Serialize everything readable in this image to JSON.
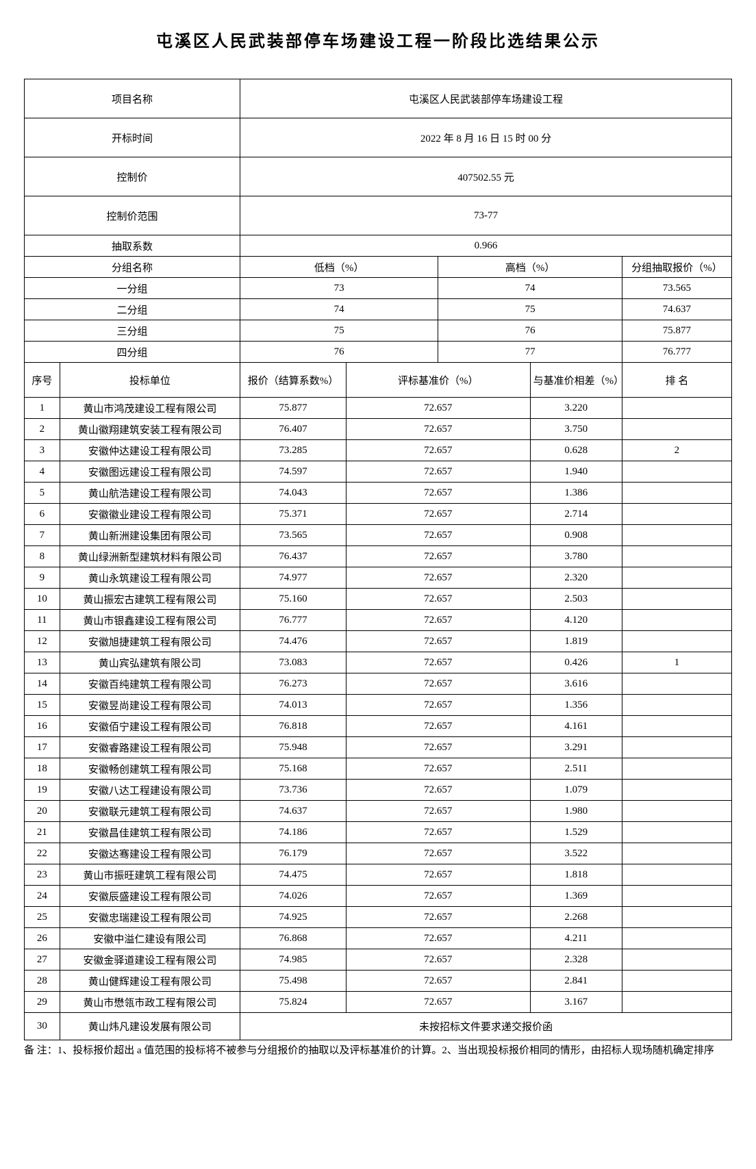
{
  "title": "屯溪区人民武装部停车场建设工程一阶段比选结果公示",
  "info": {
    "project_name_label": "项目名称",
    "project_name_value": "屯溪区人民武装部停车场建设工程",
    "open_time_label": "开标时间",
    "open_time_value": "2022 年 8 月 16 日 15 时 00 分",
    "control_price_label": "控制价",
    "control_price_value": "407502.55 元",
    "control_range_label": "控制价范围",
    "control_range_value": "73-77",
    "coef_label": "抽取系数",
    "coef_value": "0.966"
  },
  "group_header": {
    "name": "分组名称",
    "low": "低档（%）",
    "high": "高档（%）",
    "drawn": "分组抽取报价（%）"
  },
  "groups": [
    {
      "name": "一分组",
      "low": "73",
      "high": "74",
      "drawn": "73.565"
    },
    {
      "name": "二分组",
      "low": "74",
      "high": "75",
      "drawn": "74.637"
    },
    {
      "name": "三分组",
      "low": "75",
      "high": "76",
      "drawn": "75.877"
    },
    {
      "name": "四分组",
      "low": "76",
      "high": "77",
      "drawn": "76.777"
    }
  ],
  "bid_header": {
    "seq": "序号",
    "unit": "投标单位",
    "quote": "报价（结算系数%）",
    "base": "评标基准价（%）",
    "diff": "与基准价相差（%）",
    "rank": "排 名"
  },
  "bids": [
    {
      "seq": "1",
      "unit": "黄山市鸿茂建设工程有限公司",
      "quote": "75.877",
      "base": "72.657",
      "diff": "3.220",
      "rank": ""
    },
    {
      "seq": "2",
      "unit": "黄山徽翔建筑安装工程有限公司",
      "quote": "76.407",
      "base": "72.657",
      "diff": "3.750",
      "rank": ""
    },
    {
      "seq": "3",
      "unit": "安徽仲达建设工程有限公司",
      "quote": "73.285",
      "base": "72.657",
      "diff": "0.628",
      "rank": "2"
    },
    {
      "seq": "4",
      "unit": "安徽图远建设工程有限公司",
      "quote": "74.597",
      "base": "72.657",
      "diff": "1.940",
      "rank": ""
    },
    {
      "seq": "5",
      "unit": "黄山航浩建设工程有限公司",
      "quote": "74.043",
      "base": "72.657",
      "diff": "1.386",
      "rank": ""
    },
    {
      "seq": "6",
      "unit": "安徽徽业建设工程有限公司",
      "quote": "75.371",
      "base": "72.657",
      "diff": "2.714",
      "rank": ""
    },
    {
      "seq": "7",
      "unit": "黄山新洲建设集团有限公司",
      "quote": "73.565",
      "base": "72.657",
      "diff": "0.908",
      "rank": ""
    },
    {
      "seq": "8",
      "unit": "黄山绿洲新型建筑材料有限公司",
      "quote": "76.437",
      "base": "72.657",
      "diff": "3.780",
      "rank": ""
    },
    {
      "seq": "9",
      "unit": "黄山永筑建设工程有限公司",
      "quote": "74.977",
      "base": "72.657",
      "diff": "2.320",
      "rank": ""
    },
    {
      "seq": "10",
      "unit": "黄山振宏古建筑工程有限公司",
      "quote": "75.160",
      "base": "72.657",
      "diff": "2.503",
      "rank": ""
    },
    {
      "seq": "11",
      "unit": "黄山市银鑫建设工程有限公司",
      "quote": "76.777",
      "base": "72.657",
      "diff": "4.120",
      "rank": ""
    },
    {
      "seq": "12",
      "unit": "安徽旭捷建筑工程有限公司",
      "quote": "74.476",
      "base": "72.657",
      "diff": "1.819",
      "rank": ""
    },
    {
      "seq": "13",
      "unit": "黄山宾弘建筑有限公司",
      "quote": "73.083",
      "base": "72.657",
      "diff": "0.426",
      "rank": "1"
    },
    {
      "seq": "14",
      "unit": "安徽百纯建筑工程有限公司",
      "quote": "76.273",
      "base": "72.657",
      "diff": "3.616",
      "rank": ""
    },
    {
      "seq": "15",
      "unit": "安徽昱尚建设工程有限公司",
      "quote": "74.013",
      "base": "72.657",
      "diff": "1.356",
      "rank": ""
    },
    {
      "seq": "16",
      "unit": "安徽佰宁建设工程有限公司",
      "quote": "76.818",
      "base": "72.657",
      "diff": "4.161",
      "rank": ""
    },
    {
      "seq": "17",
      "unit": "安徽睿路建设工程有限公司",
      "quote": "75.948",
      "base": "72.657",
      "diff": "3.291",
      "rank": ""
    },
    {
      "seq": "18",
      "unit": "安徽畅创建筑工程有限公司",
      "quote": "75.168",
      "base": "72.657",
      "diff": "2.511",
      "rank": ""
    },
    {
      "seq": "19",
      "unit": "安徽八达工程建设有限公司",
      "quote": "73.736",
      "base": "72.657",
      "diff": "1.079",
      "rank": ""
    },
    {
      "seq": "20",
      "unit": "安徽联元建筑工程有限公司",
      "quote": "74.637",
      "base": "72.657",
      "diff": "1.980",
      "rank": ""
    },
    {
      "seq": "21",
      "unit": "安徽昌佳建筑工程有限公司",
      "quote": "74.186",
      "base": "72.657",
      "diff": "1.529",
      "rank": ""
    },
    {
      "seq": "22",
      "unit": "安徽达骞建设工程有限公司",
      "quote": "76.179",
      "base": "72.657",
      "diff": "3.522",
      "rank": ""
    },
    {
      "seq": "23",
      "unit": "黄山市振旺建筑工程有限公司",
      "quote": "74.475",
      "base": "72.657",
      "diff": "1.818",
      "rank": ""
    },
    {
      "seq": "24",
      "unit": "安徽辰盛建设工程有限公司",
      "quote": "74.026",
      "base": "72.657",
      "diff": "1.369",
      "rank": ""
    },
    {
      "seq": "25",
      "unit": "安徽忠瑞建设工程有限公司",
      "quote": "74.925",
      "base": "72.657",
      "diff": "2.268",
      "rank": ""
    },
    {
      "seq": "26",
      "unit": "安徽中溢仁建设有限公司",
      "quote": "76.868",
      "base": "72.657",
      "diff": "4.211",
      "rank": ""
    },
    {
      "seq": "27",
      "unit": "安徽金驿道建设工程有限公司",
      "quote": "74.985",
      "base": "72.657",
      "diff": "2.328",
      "rank": ""
    },
    {
      "seq": "28",
      "unit": "黄山健辉建设工程有限公司",
      "quote": "75.498",
      "base": "72.657",
      "diff": "2.841",
      "rank": ""
    },
    {
      "seq": "29",
      "unit": "黄山市懋瓴市政工程有限公司",
      "quote": "75.824",
      "base": "72.657",
      "diff": "3.167",
      "rank": ""
    }
  ],
  "special_row": {
    "seq": "30",
    "unit": "黄山炜凡建设发展有限公司",
    "note": "未按招标文件要求递交报价函"
  },
  "footnote": "备 注：1、投标报价超出 a 值范围的投标将不被参与分组报价的抽取以及评标基准价的计算。2、当出现投标报价相同的情形，由招标人现场随机确定排序"
}
